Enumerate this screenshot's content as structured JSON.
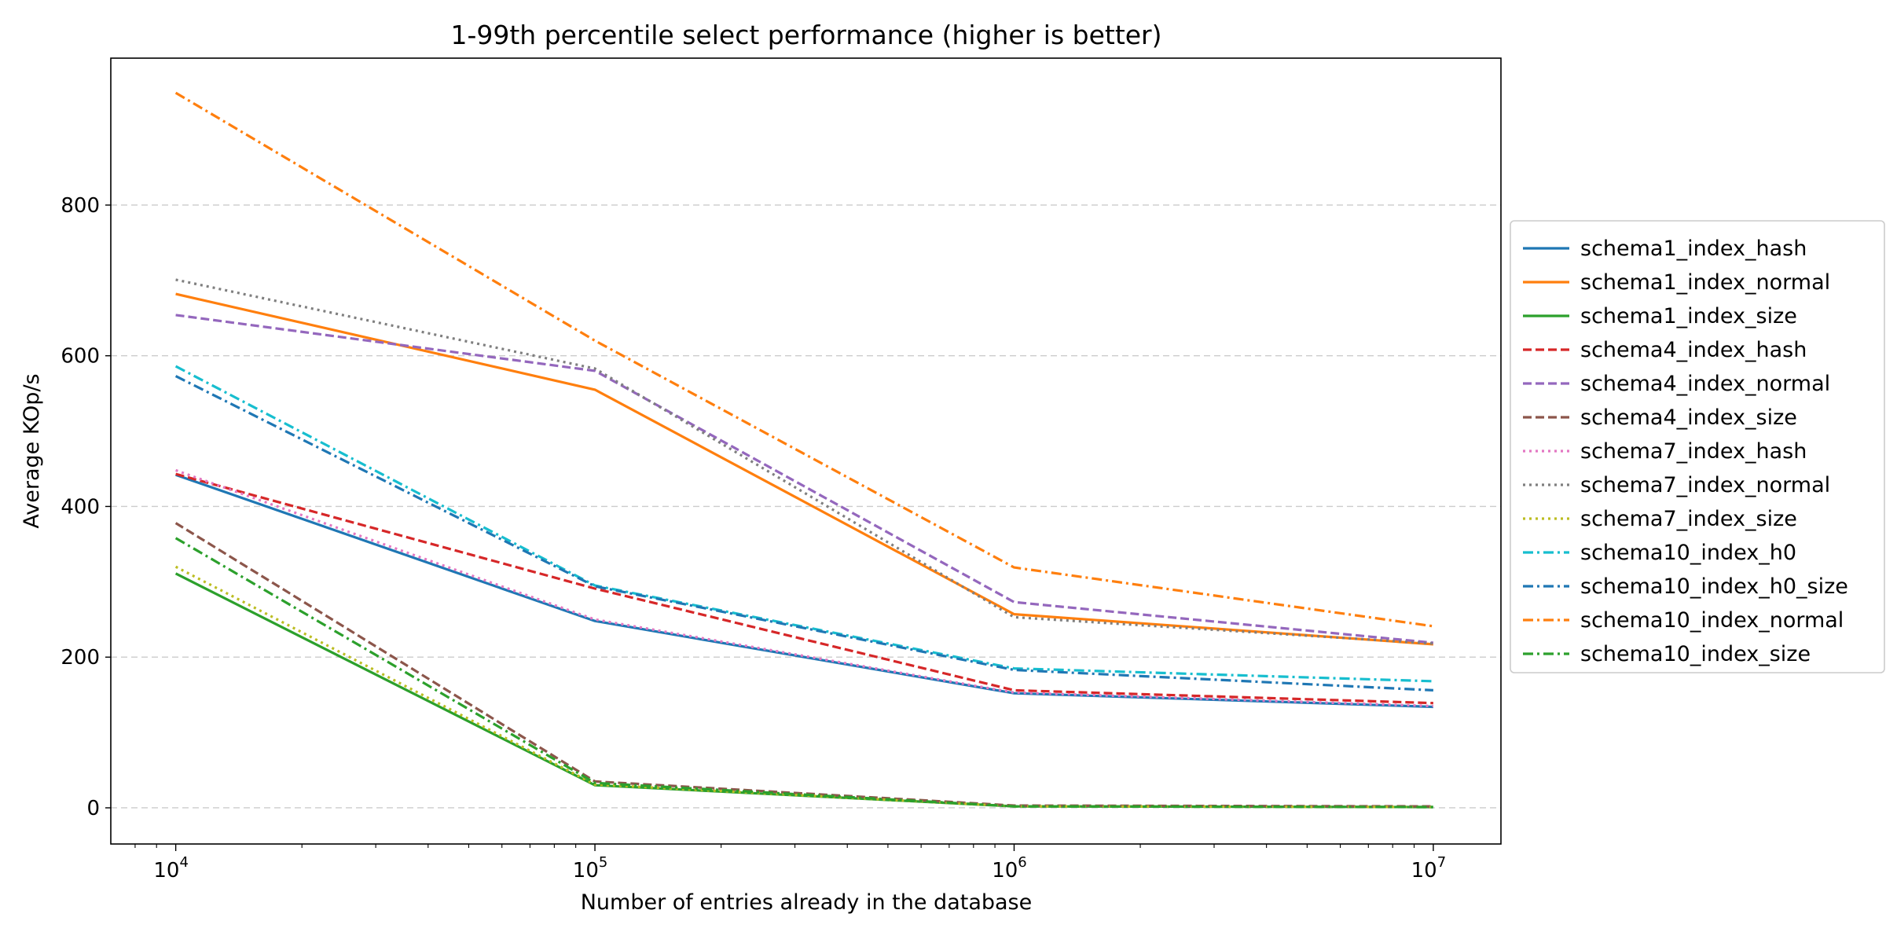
{
  "chart_data": {
    "type": "line",
    "title": "1-99th percentile select performance (higher is better)",
    "xlabel": "Number of entries already in the database",
    "ylabel": "Average KOp/s",
    "x_scale": "log",
    "x": [
      10000,
      100000,
      1000000,
      10000000
    ],
    "x_ticks": [
      {
        "value": 10000,
        "base": "10",
        "exp": "4"
      },
      {
        "value": 100000,
        "base": "10",
        "exp": "5"
      },
      {
        "value": 1000000,
        "base": "10",
        "exp": "6"
      },
      {
        "value": 10000000,
        "base": "10",
        "exp": "7"
      }
    ],
    "y_ticks": [
      0,
      200,
      400,
      600,
      800
    ],
    "xlim": [
      7000,
      14500000
    ],
    "ylim": [
      -48,
      995
    ],
    "grid": {
      "y": true,
      "x": false,
      "style": "dashed"
    },
    "legend_position": "right, outside plot",
    "series": [
      {
        "name": "schema1_index_hash",
        "color": "#1f77b4",
        "dash": "solid",
        "values": [
          442,
          248,
          152,
          134
        ]
      },
      {
        "name": "schema1_index_normal",
        "color": "#ff7f0e",
        "dash": "solid",
        "values": [
          682,
          555,
          257,
          217
        ]
      },
      {
        "name": "schema1_index_size",
        "color": "#2ca02c",
        "dash": "solid",
        "values": [
          311,
          30,
          2,
          1
        ]
      },
      {
        "name": "schema4_index_hash",
        "color": "#d62728",
        "dash": "dashed",
        "values": [
          443,
          291,
          156,
          139
        ]
      },
      {
        "name": "schema4_index_normal",
        "color": "#9467bd",
        "dash": "dashed",
        "values": [
          654,
          580,
          273,
          219
        ]
      },
      {
        "name": "schema4_index_size",
        "color": "#8c564b",
        "dash": "dashed",
        "values": [
          378,
          35,
          3,
          2
        ]
      },
      {
        "name": "schema7_index_hash",
        "color": "#e377c2",
        "dash": "dotted",
        "values": [
          448,
          250,
          153,
          135
        ]
      },
      {
        "name": "schema7_index_normal",
        "color": "#7f7f7f",
        "dash": "dotted",
        "values": [
          701,
          583,
          253,
          218
        ]
      },
      {
        "name": "schema7_index_size",
        "color": "#bcbd22",
        "dash": "dotted",
        "values": [
          320,
          31,
          2,
          1
        ]
      },
      {
        "name": "schema10_index_h0",
        "color": "#17becf",
        "dash": "dashdot",
        "values": [
          586,
          295,
          185,
          168
        ]
      },
      {
        "name": "schema10_index_h0_size",
        "color": "#1f77b4",
        "dash": "dashdot",
        "values": [
          573,
          294,
          183,
          156
        ]
      },
      {
        "name": "schema10_index_normal",
        "color": "#ff7f0e",
        "dash": "dashdot",
        "values": [
          949,
          620,
          319,
          241
        ]
      },
      {
        "name": "schema10_index_size",
        "color": "#2ca02c",
        "dash": "dashdot",
        "values": [
          358,
          33,
          2,
          1
        ]
      }
    ]
  }
}
